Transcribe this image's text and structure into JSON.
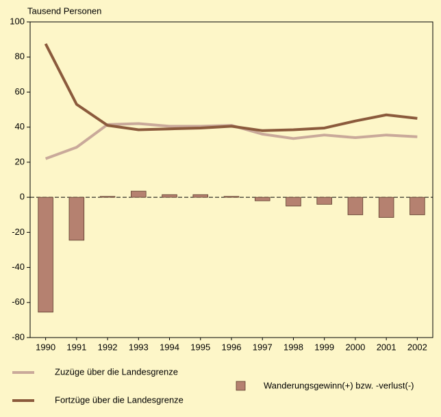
{
  "chart_data": {
    "type": "bar",
    "y_label": "Tausend Personen",
    "categories": [
      "1990",
      "1991",
      "1992",
      "1993",
      "1994",
      "1995",
      "1996",
      "1997",
      "1998",
      "1999",
      "2000",
      "2001",
      "2002"
    ],
    "series": [
      {
        "name": "Zuzüge über die Landesgrenze",
        "type": "line",
        "color": "#c9a99a",
        "values": [
          22,
          28.5,
          41.5,
          42,
          40.5,
          40.5,
          41,
          36,
          33.5,
          35.5,
          34,
          35.5,
          34.5
        ]
      },
      {
        "name": "Fortzüge über die Landesgrenze",
        "type": "line",
        "color": "#8b5a3c",
        "values": [
          87.5,
          53,
          41,
          38.5,
          39,
          39.5,
          40.5,
          38,
          38.5,
          39.5,
          43.5,
          47,
          45
        ]
      },
      {
        "name": "Wanderungsgewinn(+) bzw. -verlust(-)",
        "type": "bar",
        "color": "#b58170",
        "values": [
          -65.5,
          -24.5,
          0.5,
          3.5,
          1.5,
          1.5,
          0.5,
          -2,
          -5,
          -4,
          -10,
          -11.5,
          -10
        ]
      }
    ],
    "ylim": [
      -80,
      100
    ],
    "yticks": [
      -80,
      -60,
      -40,
      -20,
      0,
      20,
      40,
      60,
      80,
      100
    ],
    "grid": false
  }
}
